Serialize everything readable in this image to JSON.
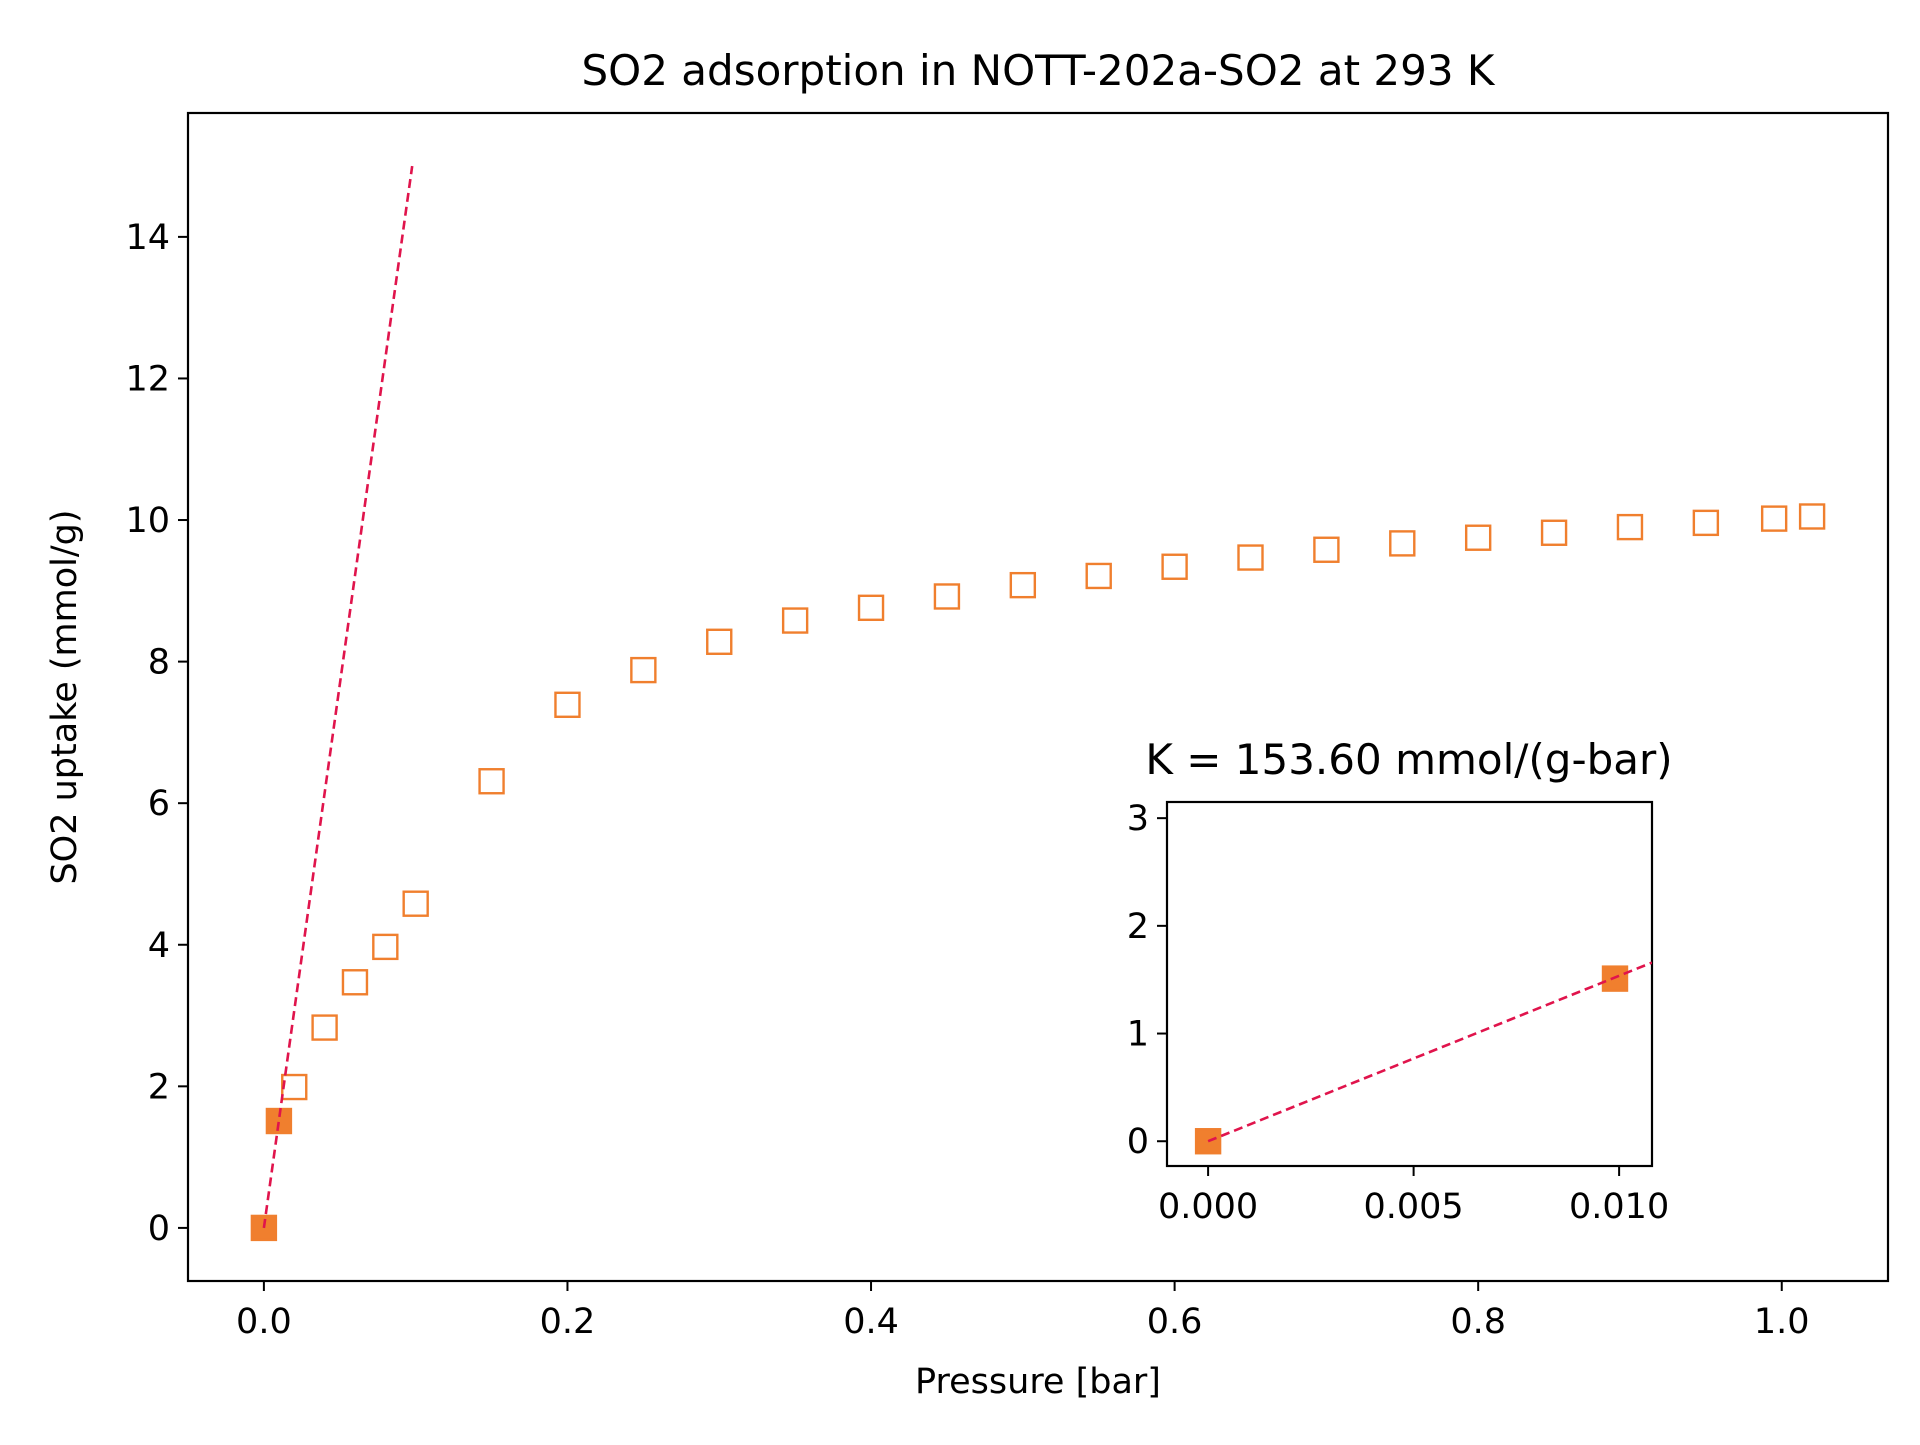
{
  "chart_data": [
    {
      "type": "scatter",
      "title": "SO2 adsorption in NOTT-202a-SO2 at 293 K",
      "xlabel": "Pressure [bar]",
      "ylabel": "SO2 uptake (mmol/g)",
      "xlim": [
        -0.05,
        1.07
      ],
      "ylim": [
        -0.75,
        15.75
      ],
      "x_ticks": [
        0.0,
        0.2,
        0.4,
        0.6,
        0.8,
        1.0
      ],
      "x_tick_labels": [
        "0.0",
        "0.2",
        "0.4",
        "0.6",
        "0.8",
        "1.0"
      ],
      "y_ticks": [
        0,
        2,
        4,
        6,
        8,
        10,
        12,
        14
      ],
      "y_tick_labels": [
        "0",
        "2",
        "4",
        "6",
        "8",
        "10",
        "12",
        "14"
      ],
      "grid": false,
      "series": [
        {
          "marker": "open-square",
          "color": "#f07f2e",
          "x": [
            0.02,
            0.04,
            0.06,
            0.08,
            0.1,
            0.15,
            0.2,
            0.25,
            0.3,
            0.35,
            0.4,
            0.45,
            0.5,
            0.55,
            0.6,
            0.65,
            0.7,
            0.75,
            0.8,
            0.85,
            0.9,
            0.95,
            0.995,
            1.02
          ],
          "y": [
            1.99,
            2.83,
            3.47,
            3.97,
            4.58,
            6.31,
            7.39,
            7.88,
            8.28,
            8.58,
            8.76,
            8.92,
            9.08,
            9.21,
            9.34,
            9.47,
            9.58,
            9.67,
            9.75,
            9.82,
            9.9,
            9.96,
            10.02,
            10.05
          ]
        },
        {
          "marker": "filled-square",
          "color": "#f07f2e",
          "x": [
            0.0,
            0.0099
          ],
          "y": [
            0.0,
            1.51
          ]
        },
        {
          "type": "line",
          "style": "dashed",
          "color": "#e0144c",
          "x": [
            0.0,
            0.0977
          ],
          "y": [
            0.0,
            15.0
          ]
        }
      ]
    },
    {
      "type": "scatter",
      "title": "K = 153.60 mmol/(g-bar)",
      "xlabel": "",
      "ylabel": "",
      "xlim": [
        -0.001,
        0.0108
      ],
      "ylim": [
        -0.23,
        3.15
      ],
      "x_ticks": [
        0.0,
        0.005,
        0.01
      ],
      "x_tick_labels": [
        "0.000",
        "0.005",
        "0.010"
      ],
      "y_ticks": [
        0,
        1,
        2,
        3
      ],
      "y_tick_labels": [
        "0",
        "1",
        "2",
        "3"
      ],
      "grid": false,
      "series": [
        {
          "marker": "filled-square",
          "color": "#f07f2e",
          "x": [
            0.0,
            0.0099
          ],
          "y": [
            0.0,
            1.51
          ]
        },
        {
          "type": "line",
          "style": "dashed",
          "color": "#e0144c",
          "x": [
            0.0,
            0.0108
          ],
          "y": [
            0.0,
            1.659
          ]
        }
      ]
    }
  ]
}
